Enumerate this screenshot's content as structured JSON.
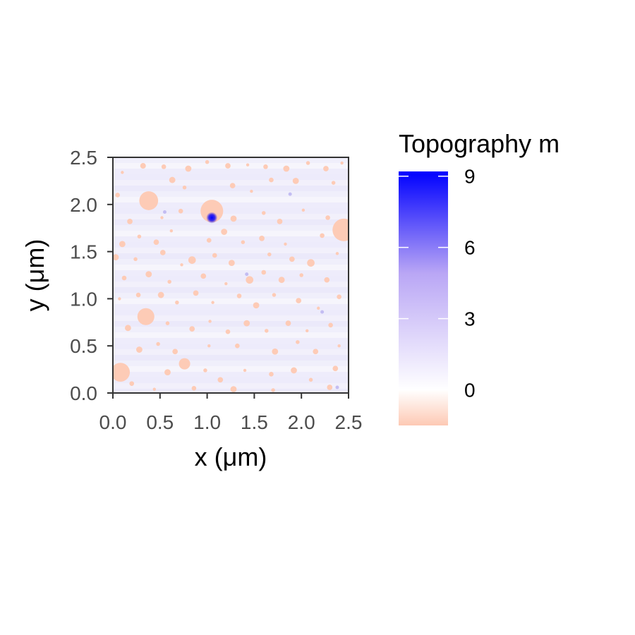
{
  "chart_data": {
    "type": "heatmap",
    "title": "",
    "xlabel": "x (μm)",
    "ylabel": "y (μm)",
    "xlim": [
      0,
      2.5
    ],
    "ylim": [
      0,
      2.5
    ],
    "x_ticks": [
      "0.0",
      "0.5",
      "1.0",
      "1.5",
      "2.0",
      "2.5"
    ],
    "y_ticks": [
      "0.0",
      "0.5",
      "1.0",
      "1.5",
      "2.0",
      "2.5"
    ],
    "grid": false,
    "legend": {
      "title": "Topography m",
      "placement": "right",
      "ticks": [
        "0",
        "3",
        "6",
        "9"
      ],
      "tick_values": [
        0,
        3,
        6,
        9
      ],
      "range": [
        -1.5,
        9.2
      ],
      "low_color": "#fdc9b4",
      "mid_color": "#ffffff",
      "high_color": "#0000ff"
    },
    "background_color": "#efeefb",
    "particles": {
      "color": "#fdcbb6",
      "value_approx": -1,
      "large": [
        {
          "x": 0.38,
          "y": 2.04,
          "r": 0.1
        },
        {
          "x": 1.05,
          "y": 1.93,
          "r": 0.12
        },
        {
          "x": 2.45,
          "y": 1.73,
          "r": 0.12
        },
        {
          "x": 0.35,
          "y": 0.81,
          "r": 0.09
        },
        {
          "x": 0.08,
          "y": 0.22,
          "r": 0.1
        },
        {
          "x": 0.76,
          "y": 0.31,
          "r": 0.06
        },
        {
          "x": 0.32,
          "y": 2.41,
          "r": 0.03
        },
        {
          "x": 2.1,
          "y": 1.38,
          "r": 0.04
        },
        {
          "x": 1.45,
          "y": 1.2,
          "r": 0.04
        },
        {
          "x": 0.84,
          "y": 1.41,
          "r": 0.04
        }
      ],
      "small": [
        [
          0.1,
          2.34
        ],
        [
          0.54,
          2.4
        ],
        [
          0.8,
          2.38
        ],
        [
          1.0,
          2.45
        ],
        [
          1.22,
          2.41
        ],
        [
          1.43,
          2.42
        ],
        [
          1.62,
          2.4
        ],
        [
          1.84,
          2.38
        ],
        [
          2.07,
          2.44
        ],
        [
          2.26,
          2.38
        ],
        [
          2.43,
          2.44
        ],
        [
          0.05,
          2.1
        ],
        [
          0.63,
          2.26
        ],
        [
          0.76,
          2.18
        ],
        [
          1.27,
          2.2
        ],
        [
          1.47,
          2.14
        ],
        [
          1.68,
          2.26
        ],
        [
          1.94,
          2.25
        ],
        [
          2.34,
          2.23
        ],
        [
          0.18,
          1.82
        ],
        [
          0.52,
          1.86
        ],
        [
          0.72,
          1.93
        ],
        [
          1.28,
          1.85
        ],
        [
          1.6,
          1.91
        ],
        [
          1.77,
          1.82
        ],
        [
          2.02,
          1.94
        ],
        [
          2.28,
          1.86
        ],
        [
          0.1,
          1.58
        ],
        [
          0.28,
          1.66
        ],
        [
          0.46,
          1.6
        ],
        [
          0.62,
          1.72
        ],
        [
          1.02,
          1.62
        ],
        [
          1.18,
          1.71
        ],
        [
          1.38,
          1.6
        ],
        [
          1.58,
          1.64
        ],
        [
          1.83,
          1.58
        ],
        [
          2.22,
          1.67
        ],
        [
          0.03,
          1.44
        ],
        [
          0.24,
          1.42
        ],
        [
          0.53,
          1.49
        ],
        [
          0.73,
          1.36
        ],
        [
          1.08,
          1.46
        ],
        [
          1.26,
          1.38
        ],
        [
          1.66,
          1.47
        ],
        [
          1.9,
          1.42
        ],
        [
          2.38,
          1.48
        ],
        [
          0.12,
          1.22
        ],
        [
          0.38,
          1.26
        ],
        [
          0.6,
          1.18
        ],
        [
          0.96,
          1.24
        ],
        [
          1.2,
          1.16
        ],
        [
          1.6,
          1.28
        ],
        [
          1.79,
          1.2
        ],
        [
          2.0,
          1.25
        ],
        [
          2.27,
          1.2
        ],
        [
          0.07,
          1.0
        ],
        [
          0.27,
          1.04
        ],
        [
          0.51,
          1.04
        ],
        [
          0.68,
          0.96
        ],
        [
          0.88,
          1.06
        ],
        [
          1.06,
          0.96
        ],
        [
          1.34,
          1.03
        ],
        [
          1.52,
          0.93
        ],
        [
          1.71,
          1.04
        ],
        [
          1.97,
          0.98
        ],
        [
          2.18,
          0.9
        ],
        [
          2.4,
          1.02
        ],
        [
          0.16,
          0.69
        ],
        [
          0.58,
          0.74
        ],
        [
          0.84,
          0.68
        ],
        [
          1.03,
          0.76
        ],
        [
          1.22,
          0.65
        ],
        [
          1.42,
          0.74
        ],
        [
          1.63,
          0.66
        ],
        [
          1.86,
          0.74
        ],
        [
          2.06,
          0.66
        ],
        [
          2.31,
          0.72
        ],
        [
          0.28,
          0.46
        ],
        [
          0.48,
          0.52
        ],
        [
          0.66,
          0.44
        ],
        [
          1.02,
          0.5
        ],
        [
          1.32,
          0.5
        ],
        [
          1.72,
          0.44
        ],
        [
          1.96,
          0.54
        ],
        [
          2.15,
          0.44
        ],
        [
          2.4,
          0.5
        ],
        [
          0.2,
          0.1
        ],
        [
          0.58,
          0.22
        ],
        [
          0.98,
          0.24
        ],
        [
          1.14,
          0.14
        ],
        [
          1.4,
          0.24
        ],
        [
          1.68,
          0.2
        ],
        [
          1.92,
          0.24
        ],
        [
          2.1,
          0.14
        ],
        [
          2.36,
          0.26
        ],
        [
          0.44,
          0.04
        ],
        [
          0.86,
          0.05
        ],
        [
          1.28,
          0.04
        ],
        [
          1.7,
          0.03
        ],
        [
          2.3,
          0.06
        ]
      ]
    },
    "peak": {
      "x": 1.05,
      "y": 1.86,
      "value": 9,
      "color": "#0000ff"
    },
    "blue_spots": [
      [
        1.88,
        2.11
      ],
      [
        1.42,
        1.26
      ],
      [
        2.22,
        0.86
      ],
      [
        2.38,
        0.06
      ],
      [
        0.55,
        1.92
      ]
    ]
  }
}
